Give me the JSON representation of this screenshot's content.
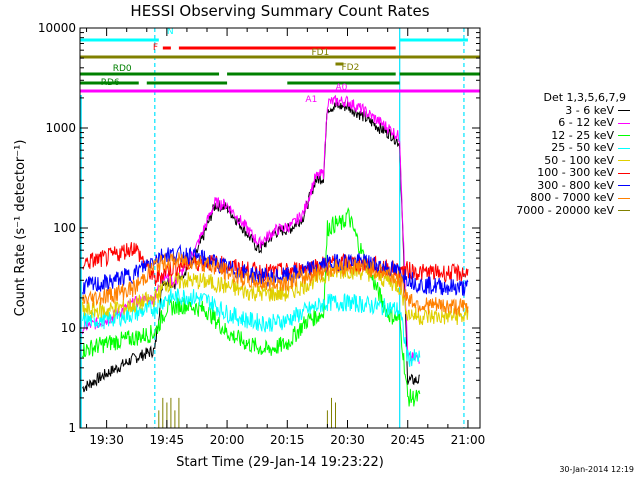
{
  "chart_data": {
    "type": "line",
    "title": "HESSI Observing Summary Count Rates",
    "xlabel": "Start Time (29-Jan-14 19:23:22)",
    "ylabel": "Count Rate (s⁻¹ detector⁻¹)",
    "y_scale": "log",
    "ylim": [
      1,
      10000
    ],
    "xlim": [
      "19:23:22",
      "21:03:00"
    ],
    "x_ticks": [
      "19:30",
      "19:45",
      "20:00",
      "20:15",
      "20:30",
      "20:45",
      "21:00"
    ],
    "y_ticks": [
      "1",
      "10",
      "100",
      "1000",
      "10000"
    ],
    "legend_title": "Det 1,3,5,6,7,9",
    "legend_position": "right-outside",
    "series": [
      {
        "name": "3 - 6 keV",
        "color": "#000000",
        "x": [
          "19:24",
          "19:30",
          "19:37",
          "19:42",
          "19:44",
          "19:47",
          "19:52",
          "19:57",
          "20:00",
          "20:04",
          "20:08",
          "20:12",
          "20:16",
          "20:19",
          "20:22",
          "20:24",
          "20:25",
          "20:27",
          "20:29",
          "20:30",
          "20:34",
          "20:38",
          "20:41",
          "20:43",
          "20:45",
          "20:48"
        ],
        "y": [
          2.5,
          3.5,
          5,
          6,
          30,
          28,
          50,
          170,
          160,
          100,
          60,
          90,
          100,
          130,
          300,
          320,
          1600,
          1650,
          1650,
          1650,
          1300,
          1000,
          850,
          700,
          3,
          3
        ]
      },
      {
        "name": "6 - 12 keV",
        "color": "#ff00ff",
        "x": [
          "19:24",
          "19:30",
          "19:37",
          "19:42",
          "19:44",
          "19:47",
          "19:52",
          "19:57",
          "20:00",
          "20:04",
          "20:08",
          "20:12",
          "20:16",
          "20:19",
          "20:22",
          "20:24",
          "20:25",
          "20:27",
          "20:29",
          "20:30",
          "20:34",
          "20:38",
          "20:41",
          "20:43",
          "20:45",
          "20:48"
        ],
        "y": [
          10,
          12,
          18,
          20,
          35,
          28,
          60,
          180,
          170,
          110,
          70,
          95,
          105,
          140,
          320,
          350,
          1800,
          1850,
          1850,
          1850,
          1500,
          1150,
          950,
          800,
          5,
          5
        ]
      },
      {
        "name": "12 - 25 keV",
        "color": "#00ff00",
        "x": [
          "19:24",
          "19:30",
          "19:37",
          "19:42",
          "19:45",
          "19:50",
          "19:55",
          "20:00",
          "20:05",
          "20:10",
          "20:15",
          "20:20",
          "20:24",
          "20:25",
          "20:27",
          "20:29",
          "20:30",
          "20:35",
          "20:40",
          "20:43",
          "20:45",
          "20:48"
        ],
        "y": [
          6,
          7,
          8,
          9,
          16,
          17,
          15,
          9,
          7,
          6,
          7,
          12,
          14,
          100,
          110,
          110,
          140,
          40,
          14,
          12,
          2,
          2
        ]
      },
      {
        "name": "25 - 50 keV",
        "color": "#00ffff",
        "x": [
          "19:24",
          "19:30",
          "19:37",
          "19:42",
          "19:45",
          "19:50",
          "19:55",
          "20:00",
          "20:05",
          "20:10",
          "20:15",
          "20:20",
          "20:25",
          "20:30",
          "20:35",
          "20:40",
          "20:43",
          "20:45",
          "20:48"
        ],
        "y": [
          12,
          12,
          14,
          16,
          20,
          21,
          19,
          14,
          12,
          11,
          12,
          15,
          18,
          18,
          17,
          16,
          15,
          5,
          5
        ]
      },
      {
        "name": "50 - 100 keV",
        "color": "#e0d000",
        "x": [
          "19:24",
          "19:30",
          "19:37",
          "19:42",
          "19:45",
          "19:50",
          "19:55",
          "20:00",
          "20:05",
          "20:10",
          "20:15",
          "20:20",
          "20:25",
          "20:30",
          "20:35",
          "20:40",
          "20:43",
          "20:45",
          "20:48",
          "21:00"
        ],
        "y": [
          15,
          15,
          17,
          20,
          28,
          30,
          29,
          26,
          23,
          22,
          22,
          28,
          35,
          38,
          36,
          30,
          26,
          14,
          13,
          13
        ]
      },
      {
        "name": "100 - 300 keV",
        "color": "#ff0000",
        "x": [
          "19:24",
          "19:30",
          "19:37",
          "19:42",
          "19:45",
          "19:50",
          "19:55",
          "20:00",
          "20:05",
          "20:10",
          "20:15",
          "20:20",
          "20:25",
          "20:30",
          "20:35",
          "20:40",
          "20:43",
          "20:45",
          "20:48",
          "21:00"
        ],
        "y": [
          45,
          50,
          65,
          30,
          38,
          44,
          46,
          42,
          38,
          36,
          37,
          40,
          44,
          45,
          44,
          40,
          37,
          38,
          36,
          35
        ]
      },
      {
        "name": "300 - 800 keV",
        "color": "#0000ff",
        "x": [
          "19:24",
          "19:30",
          "19:37",
          "19:42",
          "19:45",
          "19:50",
          "19:55",
          "20:00",
          "20:05",
          "20:10",
          "20:15",
          "20:20",
          "20:25",
          "20:30",
          "20:35",
          "20:40",
          "20:43",
          "20:45",
          "20:48",
          "21:00"
        ],
        "y": [
          26,
          28,
          35,
          50,
          55,
          54,
          48,
          40,
          35,
          32,
          33,
          38,
          44,
          47,
          45,
          40,
          36,
          32,
          27,
          25
        ]
      },
      {
        "name": "800 - 7000 keV",
        "color": "#ff8000",
        "x": [
          "19:24",
          "19:30",
          "19:37",
          "19:42",
          "19:45",
          "19:50",
          "19:55",
          "20:00",
          "20:05",
          "20:10",
          "20:15",
          "20:20",
          "20:25",
          "20:30",
          "20:35",
          "20:40",
          "20:43",
          "20:45",
          "20:48",
          "21:00"
        ],
        "y": [
          19,
          21,
          25,
          42,
          46,
          47,
          44,
          36,
          30,
          28,
          29,
          33,
          39,
          42,
          40,
          35,
          30,
          20,
          17,
          16
        ]
      },
      {
        "name": "7000 - 20000 keV",
        "color": "#808000",
        "x": [
          "19:43",
          "19:44",
          "19:45",
          "19:46",
          "19:47",
          "19:48",
          "20:25",
          "20:26",
          "20:27"
        ],
        "y": [
          1.5,
          2,
          1.8,
          2,
          1.5,
          2,
          1.5,
          2,
          1.8
        ]
      }
    ],
    "flag_bars": [
      {
        "label": "N",
        "color": "#00ffff",
        "segments": [
          [
            "19:23:22",
            "19:43"
          ],
          [
            "20:43",
            "21:00"
          ]
        ]
      },
      {
        "label": "F",
        "color": "#ff0000",
        "segments": [
          [
            "19:44",
            "19:46"
          ],
          [
            "19:48",
            "20:42"
          ]
        ]
      },
      {
        "label": "FD1",
        "color": "#808000",
        "segments": [
          [
            "19:23:22",
            "21:03"
          ]
        ]
      },
      {
        "label": "FD2",
        "color": "#808000",
        "segments": [
          [
            "20:27",
            "20:29"
          ]
        ]
      },
      {
        "label": "RD0",
        "color": "#008000",
        "segments": [
          [
            "19:23:22",
            "19:58"
          ],
          [
            "20:00",
            "20:42"
          ],
          [
            "20:43",
            "21:03"
          ]
        ]
      },
      {
        "label": "RD6",
        "color": "#008000",
        "segments": [
          [
            "19:23:22",
            "19:38"
          ],
          [
            "19:40",
            "20:00"
          ],
          [
            "20:15",
            "20:43"
          ]
        ]
      },
      {
        "label": "A1",
        "color": "#ff00ff",
        "segments": [
          [
            "19:23:22",
            "21:03"
          ]
        ]
      },
      {
        "label": "A0",
        "color": "#ff00ff",
        "segments": [
          [
            "20:26",
            "20:34"
          ]
        ]
      }
    ],
    "saa_bounds": [
      "19:42",
      "20:43",
      "20:59"
    ]
  },
  "footer_date": "30-Jan-2014 12:19"
}
